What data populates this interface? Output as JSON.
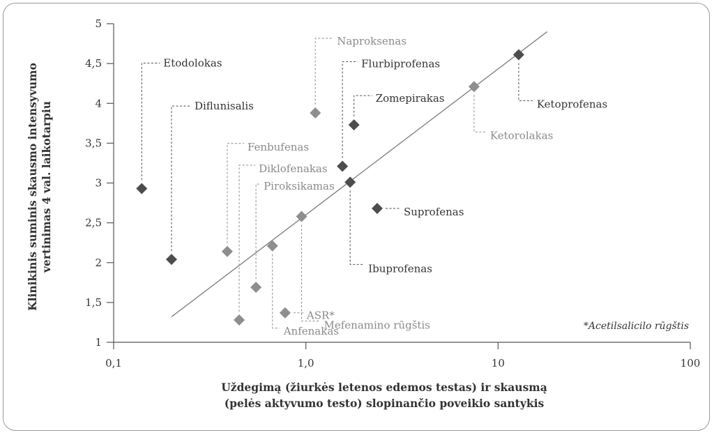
{
  "chart_data": {
    "type": "scatter",
    "x_scale": "log",
    "xlim": [
      0.1,
      100
    ],
    "ylim": [
      1,
      5
    ],
    "x_ticks": [
      "0,1",
      "1,0",
      "10",
      "100"
    ],
    "y_ticks": [
      "1",
      "1,5",
      "2",
      "2,5",
      "3",
      "3,5",
      "4",
      "4,5",
      "5"
    ],
    "xlabel_line1": "Uždegimą (žiurkės letenos edemos testas) ir skausmą",
    "xlabel_line2": "(pelės aktyvumo testo) slopinančio poveikio santykis",
    "ylabel_line1": "Klinikinis suminis skausmo intensyvumo",
    "ylabel_line2": "vertinimas 4 val. laikotarpiu",
    "footnote": "*Acetilsalicilo rūgštis",
    "grid": false,
    "trend_line": {
      "x": [
        0.2,
        18
      ],
      "y": [
        1.32,
        4.9
      ]
    },
    "points": [
      {
        "name": "Etodolokas",
        "x": 0.14,
        "y": 2.93,
        "shade": "dark"
      },
      {
        "name": "Diflunisalis",
        "x": 0.2,
        "y": 2.04,
        "shade": "dark"
      },
      {
        "name": "Fenbufenas",
        "x": 0.39,
        "y": 2.14,
        "shade": "light"
      },
      {
        "name": "Diklofenakas",
        "x": 0.45,
        "y": 1.28,
        "shade": "light"
      },
      {
        "name": "Piroksikamas",
        "x": 0.55,
        "y": 1.69,
        "shade": "light"
      },
      {
        "name": "Anfenakas",
        "x": 0.67,
        "y": 2.21,
        "shade": "light"
      },
      {
        "name": "ASR*",
        "x": 0.78,
        "y": 1.37,
        "shade": "light"
      },
      {
        "name": "Mefenamino rūgštis",
        "x": 0.95,
        "y": 2.58,
        "shade": "light"
      },
      {
        "name": "Naproksenas",
        "x": 1.12,
        "y": 3.88,
        "shade": "light"
      },
      {
        "name": "Flurbiprofenas",
        "x": 1.55,
        "y": 3.21,
        "shade": "dark"
      },
      {
        "name": "Ibuprofenas",
        "x": 1.7,
        "y": 3.01,
        "shade": "dark"
      },
      {
        "name": "Zomepirakas",
        "x": 1.78,
        "y": 3.73,
        "shade": "dark"
      },
      {
        "name": "Suprofenas",
        "x": 2.35,
        "y": 2.68,
        "shade": "dark"
      },
      {
        "name": "Ketorolakas",
        "x": 7.5,
        "y": 4.21,
        "shade": "light"
      },
      {
        "name": "Ketoprofenas",
        "x": 12.8,
        "y": 4.61,
        "shade": "dark"
      }
    ],
    "colors": {
      "dark": "#4d4d4d",
      "light": "#8e8e8e",
      "axis": "#555555",
      "trend": "#7a7a7a"
    }
  }
}
